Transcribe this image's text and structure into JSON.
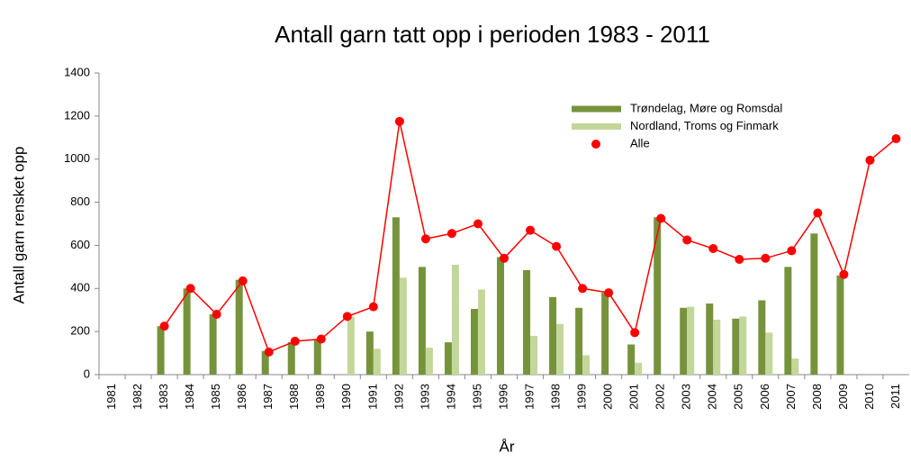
{
  "chart_data": {
    "type": "bar_line",
    "title": "Antall garn tatt opp i perioden 1983 - 2011",
    "x_label": "År",
    "y_label": "Antall garn rensket opp",
    "categories": [
      "1981",
      "1982",
      "1983",
      "1984",
      "1985",
      "1986",
      "1987",
      "1988",
      "1989",
      "1990",
      "1991",
      "1992",
      "1993",
      "1994",
      "1995",
      "1996",
      "1997",
      "1998",
      "1999",
      "2000",
      "2001",
      "2002",
      "2003",
      "2004",
      "2005",
      "2006",
      "2007",
      "2008",
      "2009",
      "2010",
      "2011"
    ],
    "series": [
      {
        "name": "Trøndelag, Møre og Romsdal",
        "type": "bar",
        "color": "#76933c",
        "values": [
          0,
          0,
          225,
          400,
          280,
          440,
          110,
          150,
          165,
          0,
          200,
          730,
          500,
          150,
          305,
          545,
          485,
          360,
          310,
          380,
          140,
          730,
          310,
          330,
          260,
          345,
          500,
          655,
          460,
          0,
          0
        ]
      },
      {
        "name": "Nordland, Troms og Finmark",
        "type": "bar",
        "color": "#c4d79b",
        "values": [
          0,
          0,
          0,
          0,
          0,
          0,
          0,
          0,
          0,
          270,
          120,
          450,
          125,
          510,
          395,
          0,
          180,
          235,
          90,
          0,
          55,
          0,
          315,
          255,
          270,
          195,
          75,
          0,
          0,
          0,
          0
        ]
      },
      {
        "name": "Alle",
        "type": "line",
        "color": "#ff0000",
        "values": [
          null,
          null,
          225,
          400,
          280,
          435,
          105,
          155,
          165,
          270,
          315,
          1175,
          630,
          655,
          700,
          540,
          670,
          595,
          400,
          380,
          195,
          725,
          625,
          585,
          535,
          540,
          575,
          750,
          465,
          995,
          1095
        ]
      }
    ],
    "ylim": [
      0,
      1400
    ],
    "yticks": [
      0,
      200,
      400,
      600,
      800,
      1000,
      1200,
      1400
    ],
    "grid": false
  }
}
